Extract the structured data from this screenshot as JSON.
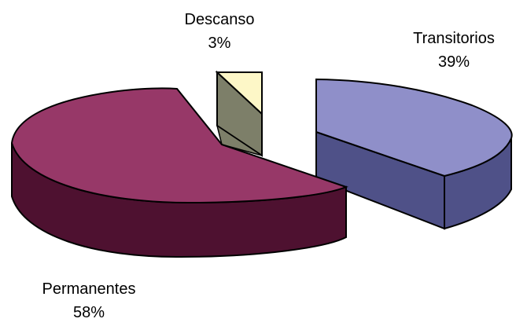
{
  "chart_data": {
    "type": "pie",
    "title": "",
    "style": "3d-exploded",
    "legend": "none",
    "slices": [
      {
        "name": "Transitorios",
        "label": "39%",
        "value": 39,
        "color": "#8f8fc9",
        "side_color": "#4f5188"
      },
      {
        "name": "Descanso",
        "label": "3%",
        "value": 3,
        "color": "#fdf7c7",
        "side_color": "#7d7f69"
      },
      {
        "name": "Permanentes",
        "label": "58%",
        "value": 58,
        "color": "#973868",
        "side_color": "#4e1130"
      }
    ]
  }
}
